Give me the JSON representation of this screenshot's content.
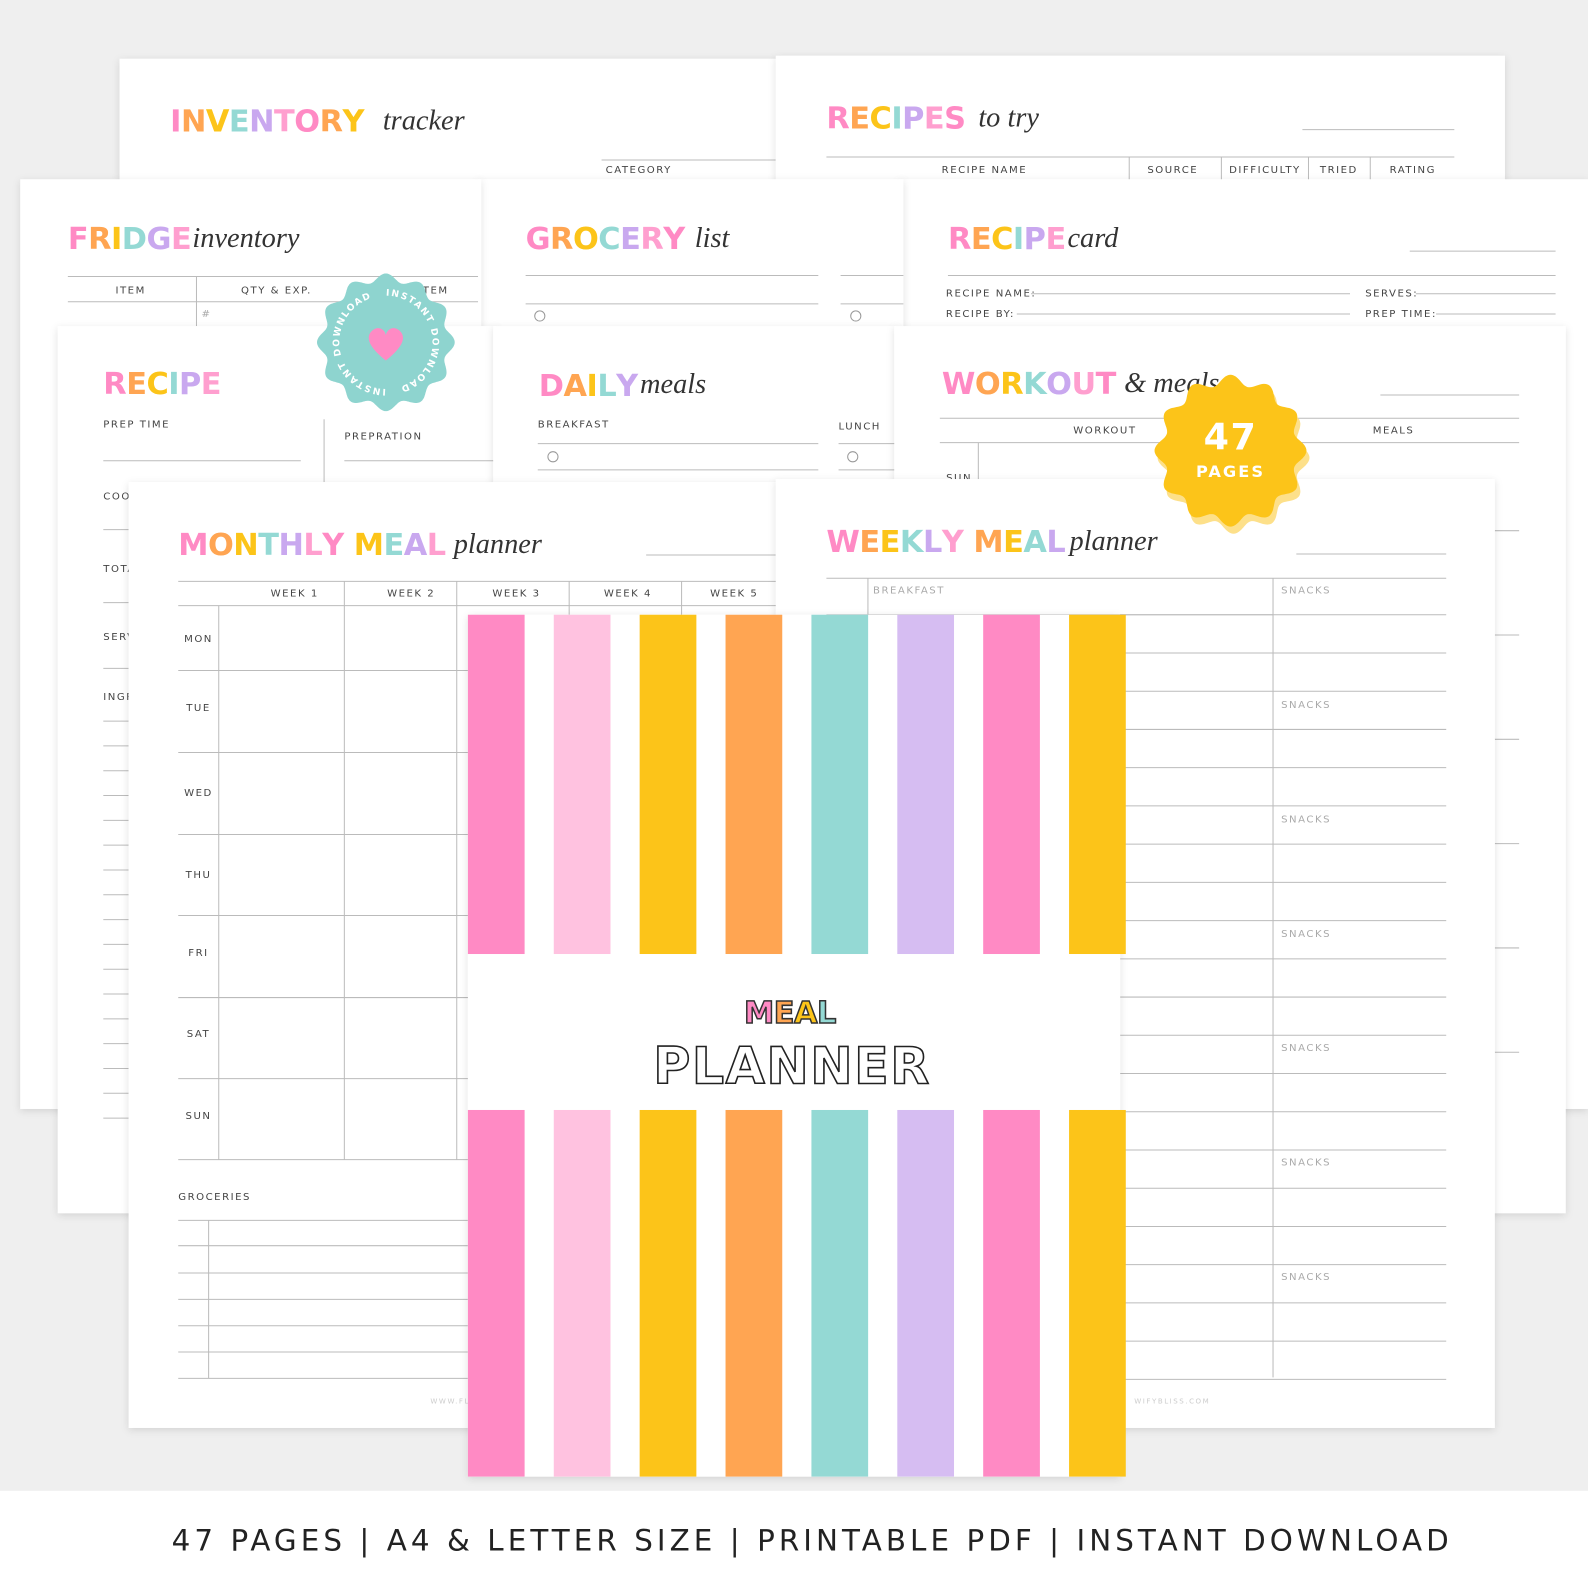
{
  "pages": {
    "inventory_tracker": {
      "title": "INVENTORY",
      "subtitle": "tracker",
      "columns": [
        "CATEGORY"
      ]
    },
    "recipes_to_try": {
      "title": "RECIPES",
      "subtitle": "to try",
      "columns": [
        "RECIPE NAME",
        "SOURCE",
        "DIFFICULTY",
        "TRIED",
        "RATING"
      ]
    },
    "fridge_inventory": {
      "title": "FRIDGE",
      "subtitle": "inventory",
      "columns": [
        "ITEM",
        "QTY & EXP.",
        "ITEM"
      ],
      "row_marker": "#"
    },
    "grocery_list": {
      "title": "GROCERY",
      "subtitle": "list"
    },
    "recipe_card": {
      "title": "RECIPE",
      "subtitle": "card",
      "fields": [
        "RECIPE NAME:",
        "SERVES:",
        "RECIPE BY:",
        "PREP TIME:"
      ]
    },
    "recipe": {
      "title": "RECIPE",
      "fields": [
        "PREP TIME",
        "PREPRATION",
        "COO",
        "TOTA",
        "SERV",
        "INGR"
      ]
    },
    "daily_meals": {
      "title": "DAILY",
      "subtitle": "meals",
      "fields": [
        "BREAKFAST",
        "LUNCH"
      ]
    },
    "workout_meals": {
      "title": "WORKOUT",
      "subtitle": "& meals",
      "columns": [
        "WORKOUT",
        "MEALS"
      ],
      "rows": [
        "SUN"
      ]
    },
    "monthly_meal_planner": {
      "title": "MONTHLY MEAL",
      "subtitle": "planner",
      "columns": [
        "WEEK 1",
        "WEEK 2",
        "WEEK 3",
        "WEEK 4",
        "WEEK 5"
      ],
      "rows": [
        "MON",
        "TUE",
        "WED",
        "THU",
        "FRI",
        "SAT",
        "SUN"
      ],
      "section": "GROCERIES",
      "footer": "WWW.FL"
    },
    "weekly_meal_planner": {
      "title": "WEEKLY MEAL",
      "subtitle": "planner",
      "column": "BREAKFAST",
      "snack_labels": [
        "SNACKS",
        "SNACKS",
        "SNACKS",
        "SNACKS",
        "SNACKS",
        "SNACKS",
        "SNACKS"
      ],
      "footer": "WIFYBLISS.COM"
    }
  },
  "cover": {
    "title": "MEAL",
    "subtitle": "PLANNER"
  },
  "badges": {
    "instant": "INSTANT DOWNLOAD",
    "count": "47",
    "count_label": "PAGES"
  },
  "banner": "47 PAGES | A4 & LETTER SIZE | PRINTABLE PDF | INSTANT DOWNLOAD"
}
